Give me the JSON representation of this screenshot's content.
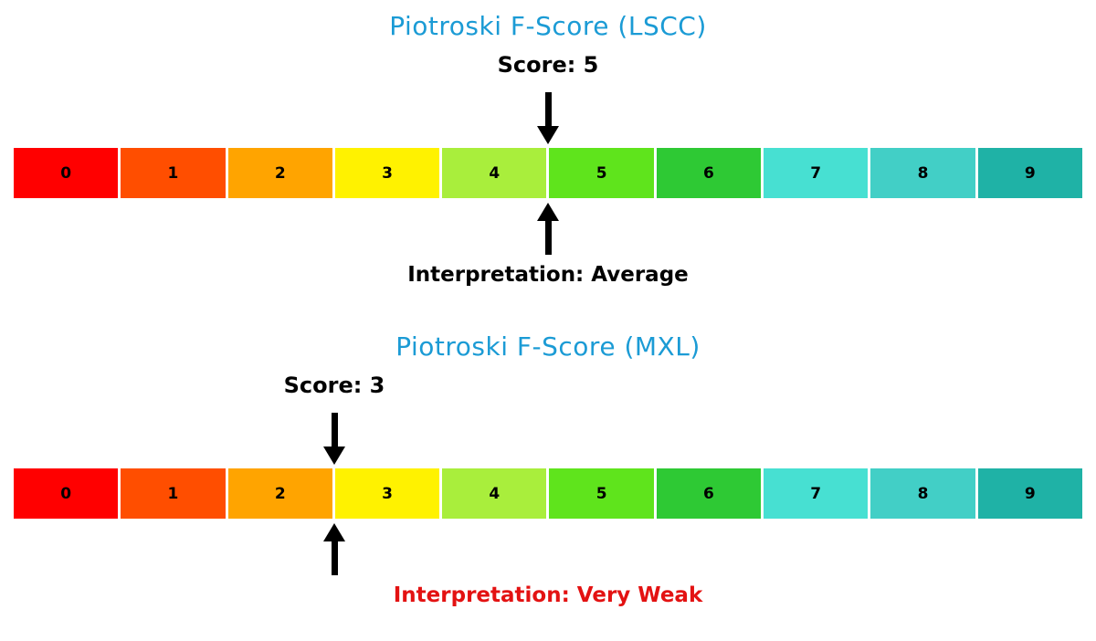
{
  "chart_data": [
    {
      "type": "bar",
      "title": "Piotroski F-Score (LSCC)",
      "score": 5,
      "score_label": "Score: 5",
      "annotation": "Interpretation: Average",
      "annotation_color": "#000000",
      "categories": [
        "0",
        "1",
        "2",
        "3",
        "4",
        "5",
        "6",
        "7",
        "8",
        "9"
      ],
      "xlim": [
        0,
        10
      ],
      "legend": "none",
      "grid": false
    },
    {
      "type": "bar",
      "title": "Piotroski F-Score (MXL)",
      "score": 3,
      "score_label": "Score: 3",
      "annotation": "Interpretation: Very Weak",
      "annotation_color": "#E31212",
      "categories": [
        "0",
        "1",
        "2",
        "3",
        "4",
        "5",
        "6",
        "7",
        "8",
        "9"
      ],
      "xlim": [
        0,
        10
      ],
      "legend": "none",
      "grid": false
    }
  ],
  "scale": {
    "segments": [
      {
        "label": "0",
        "color": "#FF0000"
      },
      {
        "label": "1",
        "color": "#FF4E00"
      },
      {
        "label": "2",
        "color": "#FFA400"
      },
      {
        "label": "3",
        "color": "#FFF200"
      },
      {
        "label": "4",
        "color": "#A9EE3C"
      },
      {
        "label": "5",
        "color": "#5FE41C"
      },
      {
        "label": "6",
        "color": "#2EC934"
      },
      {
        "label": "7",
        "color": "#47E0D2"
      },
      {
        "label": "8",
        "color": "#42CFC6"
      },
      {
        "label": "9",
        "color": "#1FB2A6"
      }
    ]
  },
  "styles": {
    "title_color": "#1B9BD5",
    "arrow_color": "#000000",
    "background_color": "#FFFFFF"
  }
}
